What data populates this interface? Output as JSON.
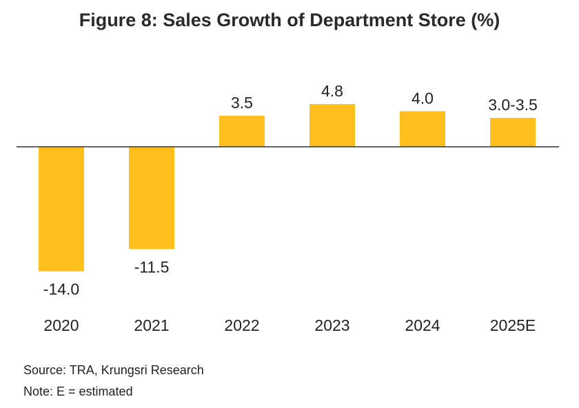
{
  "chart_data": {
    "type": "bar",
    "title": "Figure 8: Sales Growth of Department Store (%)",
    "categories": [
      "2020",
      "2021",
      "2022",
      "2023",
      "2024",
      "2025E"
    ],
    "values": [
      -14.0,
      -11.5,
      3.5,
      4.8,
      4.0,
      3.25
    ],
    "data_labels": [
      "-14.0",
      "-11.5",
      "3.5",
      "4.8",
      "4.0",
      "3.0-3.5"
    ],
    "xlabel": "",
    "ylabel": "",
    "ylim": [
      -14.5,
      6
    ],
    "grid": false,
    "legend": "none",
    "bar_color": "#FDBE1E",
    "axis_color": "#333333"
  },
  "notes": {
    "source": "Source: TRA, Krungsri Research",
    "note": "Note: E = estimated"
  }
}
